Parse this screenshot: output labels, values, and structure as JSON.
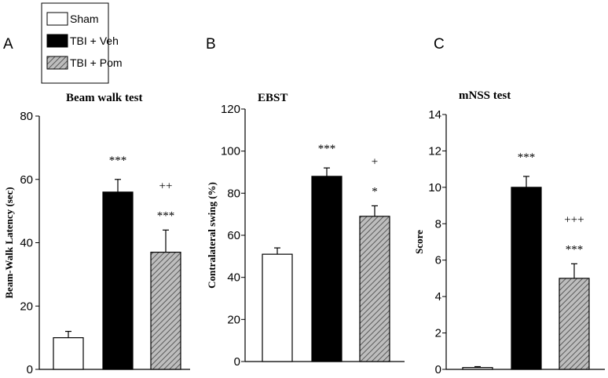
{
  "legend": {
    "items": [
      {
        "label": "Sham",
        "fill": "white"
      },
      {
        "label": "TBI + Veh",
        "fill": "black"
      },
      {
        "label": "TBI + Pom",
        "fill": "hatch"
      }
    ]
  },
  "colors": {
    "black": "#000000",
    "white": "#ffffff",
    "hatch_bg": "#bdbdbd",
    "hatch_line": "#5a5a5a"
  },
  "chart_data": [
    {
      "type": "bar",
      "panel": "A",
      "title": "Beam walk test",
      "ylabel": "Beam-Walk Latency (sec)",
      "ylim": [
        0,
        80
      ],
      "yticks": [
        0,
        20,
        40,
        60,
        80
      ],
      "categories": [
        "Sham",
        "TBI + Veh",
        "TBI + Pom"
      ],
      "values": [
        10,
        56,
        37
      ],
      "errors": [
        2,
        4,
        7
      ],
      "annotations": [
        [],
        [
          "***"
        ],
        [
          "++",
          "***"
        ]
      ]
    },
    {
      "type": "bar",
      "panel": "B",
      "title": "EBST",
      "ylabel": "Contralateral swing (%)",
      "ylim": [
        0,
        120
      ],
      "yticks": [
        0,
        20,
        40,
        60,
        80,
        100,
        120
      ],
      "categories": [
        "Sham",
        "TBI + Veh",
        "TBI + Pom"
      ],
      "values": [
        51,
        88,
        69
      ],
      "errors": [
        3,
        4,
        5
      ],
      "annotations": [
        [],
        [
          "***"
        ],
        [
          "+",
          "*"
        ]
      ]
    },
    {
      "type": "bar",
      "panel": "C",
      "title": "mNSS test",
      "ylabel": "Score",
      "ylim": [
        0,
        14
      ],
      "yticks": [
        0,
        2,
        4,
        6,
        8,
        10,
        12,
        14
      ],
      "categories": [
        "Sham",
        "TBI + Veh",
        "TBI + Pom"
      ],
      "values": [
        0.1,
        10,
        5
      ],
      "errors": [
        0.05,
        0.6,
        0.8
      ],
      "annotations": [
        [],
        [
          "***"
        ],
        [
          "+++",
          "***"
        ]
      ]
    }
  ]
}
